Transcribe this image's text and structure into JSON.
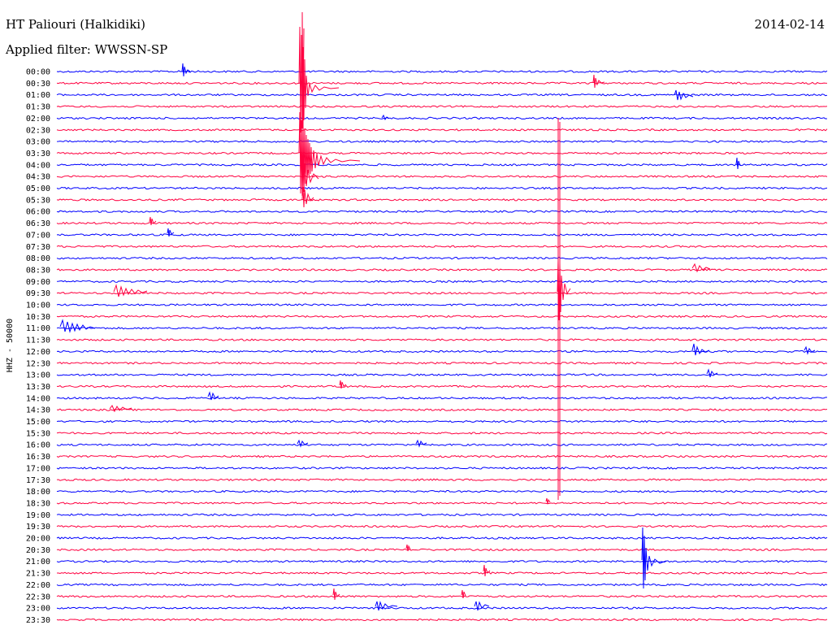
{
  "header": {
    "station": "HT Paliouri (Halkidiki)",
    "filter": "Applied filter: WWSSN-SP",
    "date": "2014-02-14"
  },
  "colors": {
    "even_row": "#0000ff",
    "odd_row": "#ff0040",
    "background": "#ffffff",
    "text": "#000000"
  },
  "chart_data": {
    "type": "line",
    "title": "HT Paliouri (Halkidiki)",
    "subtitle": "Applied filter: WWSSN-SP",
    "date": "2014-02-14",
    "ylabel": "HHZ - 50000",
    "xlabel": "",
    "grid": false,
    "legend": "none",
    "row_interval_minutes": 30,
    "rows": [
      "00:00",
      "00:30",
      "01:00",
      "01:30",
      "02:00",
      "02:30",
      "03:00",
      "03:30",
      "04:00",
      "04:30",
      "05:00",
      "05:30",
      "06:00",
      "06:30",
      "07:00",
      "07:30",
      "08:00",
      "08:30",
      "09:00",
      "09:30",
      "10:00",
      "10:30",
      "11:00",
      "11:30",
      "12:00",
      "12:30",
      "13:00",
      "13:30",
      "14:00",
      "14:30",
      "15:00",
      "15:30",
      "16:00",
      "16:30",
      "17:00",
      "17:30",
      "18:00",
      "18:30",
      "19:00",
      "19:30",
      "20:00",
      "20:30",
      "21:00",
      "21:30",
      "22:00",
      "22:30",
      "23:00",
      "23:30"
    ],
    "row_colors": [
      "blue",
      "red",
      "blue",
      "red",
      "blue",
      "red",
      "blue",
      "red",
      "blue",
      "red",
      "blue",
      "red",
      "blue",
      "red",
      "blue",
      "red",
      "blue",
      "red",
      "blue",
      "red",
      "blue",
      "red",
      "blue",
      "red",
      "blue",
      "red",
      "blue",
      "red",
      "blue",
      "red",
      "blue",
      "red",
      "blue",
      "red",
      "blue",
      "red",
      "blue",
      "red",
      "blue",
      "red",
      "blue",
      "red",
      "blue",
      "red",
      "blue",
      "red",
      "blue",
      "red"
    ]
  }
}
